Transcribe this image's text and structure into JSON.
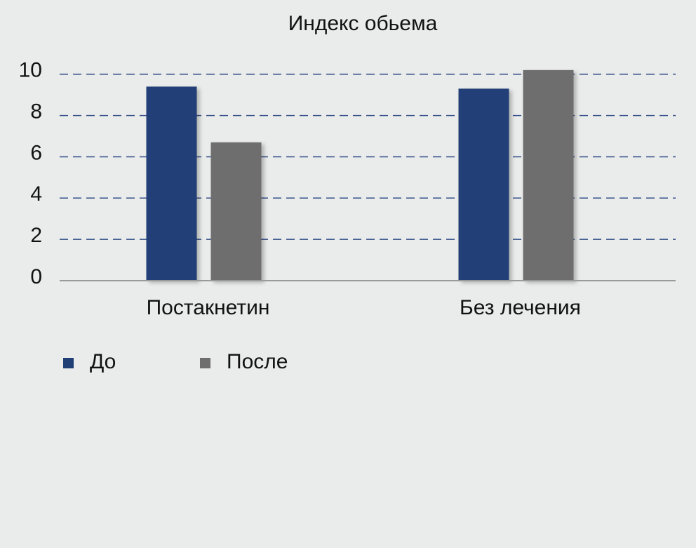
{
  "chart_data": {
    "type": "bar",
    "title": "Индекс обьема",
    "categories": [
      "Постакнетин",
      "Без лечения"
    ],
    "series": [
      {
        "name": "До",
        "color": "#213f77",
        "values": [
          9.4,
          9.3
        ]
      },
      {
        "name": "После",
        "color": "#6e6e6e",
        "values": [
          6.7,
          10.2
        ]
      }
    ],
    "ylim": [
      0,
      10.4
    ],
    "yticks": [
      0,
      2,
      4,
      6,
      8,
      10
    ],
    "grid": true,
    "legend": "bottom"
  }
}
